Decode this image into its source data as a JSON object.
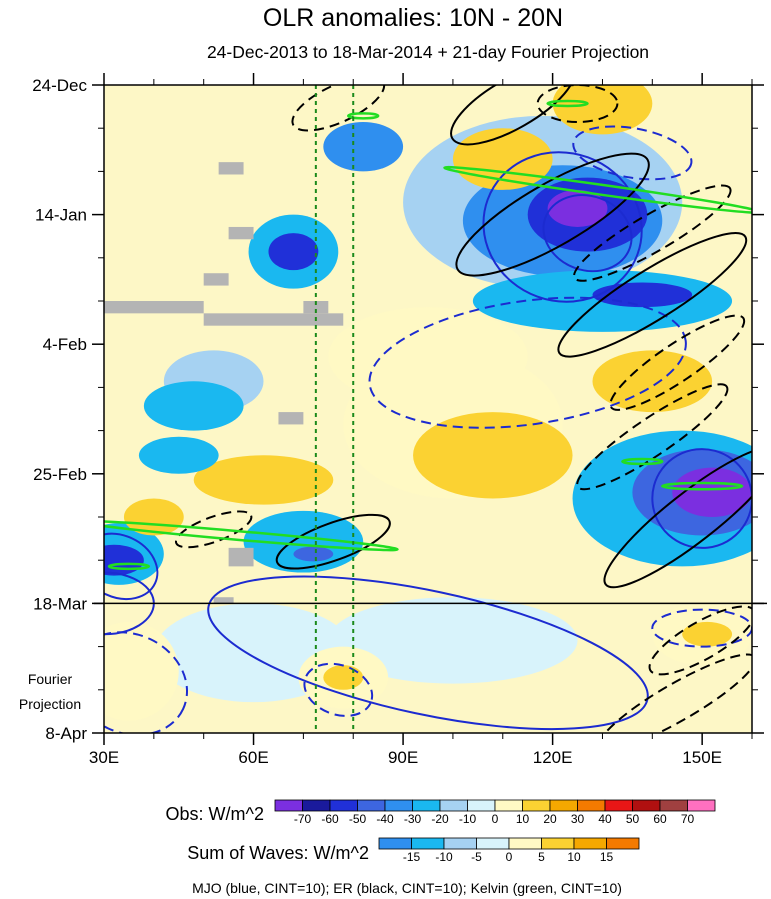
{
  "chart_data": {
    "type": "heatmap",
    "title": "OLR anomalies: 10N - 20N",
    "subtitle": "24-Dec-2013 to 18-Mar-2014 + 21-day Fourier Projection",
    "x_range": [
      30,
      160
    ],
    "y_range_days": [
      0,
      105
    ],
    "x_ticks": [
      {
        "value": 30,
        "label": "30E"
      },
      {
        "value": 60,
        "label": "60E"
      },
      {
        "value": 90,
        "label": "90E"
      },
      {
        "value": 120,
        "label": "120E"
      },
      {
        "value": 150,
        "label": "150E"
      }
    ],
    "y_ticks": [
      {
        "day": 0,
        "label": "24-Dec"
      },
      {
        "day": 21,
        "label": "14-Jan"
      },
      {
        "day": 42,
        "label": "4-Feb"
      },
      {
        "day": 63,
        "label": "25-Feb"
      },
      {
        "day": 84,
        "label": "18-Mar"
      },
      {
        "day": 105,
        "label": "8-Apr"
      }
    ],
    "projection_label": [
      "Fourier",
      "Projection"
    ],
    "projection_start_day": 84,
    "reference_lines_lon": [
      72.5,
      80
    ],
    "obs_legend": {
      "label": "Obs: W/m^2",
      "ticks": [
        "-70",
        "-60",
        "-50",
        "-40",
        "-30",
        "-20",
        "-10",
        "0",
        "10",
        "20",
        "30",
        "40",
        "50",
        "60",
        "70"
      ],
      "colors": [
        "#7b2fe0",
        "#1a1a9c",
        "#2030d8",
        "#3d66e0",
        "#2f8fef",
        "#1ab8f0",
        "#a6d2f2",
        "#d8f3fb",
        "#fff9c4",
        "#fbd232",
        "#f5a800",
        "#f47a00",
        "#e81616",
        "#b01010",
        "#a04040",
        "#ff70c0"
      ]
    },
    "waves_legend": {
      "label": "Sum of Waves: W/m^2",
      "ticks": [
        "-15",
        "-10",
        "-5",
        "0",
        "5",
        "10",
        "15"
      ],
      "colors": [
        "#2f8fef",
        "#1ab8f0",
        "#a6d2f2",
        "#d8f3fb",
        "#fff9c4",
        "#fbd232",
        "#f5a800",
        "#f47a00"
      ]
    },
    "footer": "MJO (blue, CINT=10); ER (black, CINT=10); Kelvin (green, CINT=10)",
    "series": [
      {
        "name": "MJO",
        "color": "blue"
      },
      {
        "name": "ER",
        "color": "black"
      },
      {
        "name": "Kelvin",
        "color": "green"
      }
    ],
    "features": [
      {
        "kind": "fill",
        "lon": 125,
        "day": 20,
        "rlon": 6,
        "rday": 3,
        "level": -70
      },
      {
        "kind": "fill",
        "lon": 127,
        "day": 21,
        "rlon": 12,
        "rday": 6,
        "level": -50
      },
      {
        "kind": "fill",
        "lon": 122,
        "day": 22,
        "rlon": 20,
        "rday": 9,
        "level": -30
      },
      {
        "kind": "fill",
        "lon": 118,
        "day": 19,
        "rlon": 28,
        "rday": 14,
        "level": -10
      },
      {
        "kind": "fill",
        "lon": 138,
        "day": 34,
        "rlon": 10,
        "rday": 2,
        "level": -50
      },
      {
        "kind": "fill",
        "lon": 130,
        "day": 35,
        "rlon": 26,
        "rday": 5,
        "level": -20
      },
      {
        "kind": "fill",
        "lon": 152,
        "day": 66,
        "rlon": 8,
        "rday": 4,
        "level": -70
      },
      {
        "kind": "fill",
        "lon": 150,
        "day": 66,
        "rlon": 14,
        "rday": 7,
        "level": -40
      },
      {
        "kind": "fill",
        "lon": 146,
        "day": 67,
        "rlon": 22,
        "rday": 11,
        "level": -20
      },
      {
        "kind": "fill",
        "lon": 72,
        "day": 76,
        "rlon": 4,
        "rday": 1.2,
        "level": -40
      },
      {
        "kind": "fill",
        "lon": 70,
        "day": 74,
        "rlon": 12,
        "rday": 5,
        "level": -20
      },
      {
        "kind": "fill",
        "lon": 32,
        "day": 77,
        "rlon": 6,
        "rday": 2.5,
        "level": -50
      },
      {
        "kind": "fill",
        "lon": 33,
        "day": 76,
        "rlon": 9,
        "rday": 5,
        "level": -20
      },
      {
        "kind": "fill",
        "lon": 68,
        "day": 27,
        "rlon": 5,
        "rday": 3,
        "level": -50
      },
      {
        "kind": "fill",
        "lon": 68,
        "day": 27,
        "rlon": 9,
        "rday": 6,
        "level": -20
      },
      {
        "kind": "fill",
        "lon": 82,
        "day": 10,
        "rlon": 8,
        "rday": 4,
        "level": -30
      },
      {
        "kind": "fill",
        "lon": 48,
        "day": 52,
        "rlon": 10,
        "rday": 4,
        "level": -20
      },
      {
        "kind": "fill",
        "lon": 45,
        "day": 60,
        "rlon": 8,
        "rday": 3,
        "level": -20
      },
      {
        "kind": "fill",
        "lon": 52,
        "day": 48,
        "rlon": 10,
        "rday": 5,
        "level": -10
      },
      {
        "kind": "fill",
        "lon": 95,
        "day": 44,
        "rlon": 20,
        "rday": 8,
        "level": 10
      },
      {
        "kind": "fill",
        "lon": 108,
        "day": 60,
        "rlon": 16,
        "rday": 7,
        "level": 20
      },
      {
        "kind": "fill",
        "lon": 100,
        "day": 55,
        "rlon": 22,
        "rday": 12,
        "level": 10
      },
      {
        "kind": "fill",
        "lon": 140,
        "day": 48,
        "rlon": 12,
        "rday": 5,
        "level": 20
      },
      {
        "kind": "fill",
        "lon": 62,
        "day": 64,
        "rlon": 14,
        "rday": 4,
        "level": 20
      },
      {
        "kind": "fill",
        "lon": 110,
        "day": 12,
        "rlon": 10,
        "rday": 5,
        "level": 20
      },
      {
        "kind": "fill",
        "lon": 130,
        "day": 3,
        "rlon": 10,
        "rday": 5,
        "level": 20
      },
      {
        "kind": "fill",
        "lon": 40,
        "day": 70,
        "rlon": 6,
        "rday": 3,
        "level": 20
      },
      {
        "kind": "fill",
        "lon": 35,
        "day": 95,
        "rlon": 10,
        "rday": 8,
        "level": 10
      },
      {
        "kind": "fill",
        "lon": 78,
        "day": 96,
        "rlon": 9,
        "rday": 5,
        "level": 10
      },
      {
        "kind": "fill",
        "lon": 78,
        "day": 96,
        "rlon": 4,
        "rday": 2,
        "level": 20
      },
      {
        "kind": "fill",
        "lon": 150,
        "day": 89,
        "rlon": 10,
        "rday": 5,
        "level": 10
      },
      {
        "kind": "fill",
        "lon": 151,
        "day": 89,
        "rlon": 5,
        "rday": 2,
        "level": 20
      },
      {
        "kind": "fill",
        "lon": 100,
        "day": 90,
        "rlon": 25,
        "rday": 7,
        "level": -5
      },
      {
        "kind": "fill",
        "lon": 60,
        "day": 92,
        "rlon": 20,
        "rday": 8,
        "level": -5
      }
    ],
    "gray_cells": [
      {
        "lon0": 53,
        "lon1": 58,
        "day0": 12.5,
        "day1": 14.5
      },
      {
        "lon0": 55,
        "lon1": 60,
        "day0": 23,
        "day1": 25
      },
      {
        "lon0": 50,
        "lon1": 55,
        "day0": 30.5,
        "day1": 32.5
      },
      {
        "lon0": 30,
        "lon1": 50,
        "day0": 35,
        "day1": 37
      },
      {
        "lon0": 50,
        "lon1": 78,
        "day0": 37,
        "day1": 39
      },
      {
        "lon0": 70,
        "lon1": 75,
        "day0": 35,
        "day1": 37
      },
      {
        "lon0": 65,
        "lon1": 70,
        "day0": 53,
        "day1": 55
      },
      {
        "lon0": 55,
        "lon1": 60,
        "day0": 75,
        "day1": 78
      },
      {
        "lon0": 52,
        "lon1": 56,
        "day0": 83,
        "day1": 84
      }
    ],
    "contours": [
      {
        "wave": "MJO",
        "sign": "neg",
        "lon": 122,
        "day": 23,
        "rlon": 16,
        "rday": 12,
        "rot": 20
      },
      {
        "wave": "MJO",
        "sign": "neg",
        "lon": 127,
        "day": 24,
        "rlon": 9,
        "rday": 6,
        "rot": 20
      },
      {
        "wave": "MJO",
        "sign": "pos",
        "lon": 136,
        "day": 11,
        "rlon": 12,
        "rday": 4,
        "rot": 10
      },
      {
        "wave": "MJO",
        "sign": "pos",
        "lon": 115,
        "day": 45,
        "rlon": 32,
        "rday": 10,
        "rot": -8
      },
      {
        "wave": "MJO",
        "sign": "neg",
        "lon": 150,
        "day": 67,
        "rlon": 10,
        "rday": 8,
        "rot": 15
      },
      {
        "wave": "MJO",
        "sign": "neg",
        "lon": 95,
        "day": 92,
        "rlon": 45,
        "rday": 10,
        "rot": 12
      },
      {
        "wave": "MJO",
        "sign": "neg",
        "lon": 33,
        "day": 78,
        "rlon": 8,
        "rday": 5,
        "rot": 25
      },
      {
        "wave": "MJO",
        "sign": "neg",
        "lon": 30,
        "day": 84,
        "rlon": 10,
        "rday": 5,
        "rot": 0
      },
      {
        "wave": "MJO",
        "sign": "pos",
        "lon": 35,
        "day": 97,
        "rlon": 12,
        "rday": 8,
        "rot": 25
      },
      {
        "wave": "MJO",
        "sign": "pos",
        "lon": 77,
        "day": 98,
        "rlon": 7,
        "rday": 4,
        "rot": 20
      },
      {
        "wave": "MJO",
        "sign": "pos",
        "lon": 150,
        "day": 88,
        "rlon": 10,
        "rday": 3,
        "rot": 0
      },
      {
        "wave": "ER",
        "sign": "neg",
        "lon": 112,
        "day": 3,
        "rlon": 14,
        "rday": 4,
        "rot": -30
      },
      {
        "wave": "ER",
        "sign": "pos",
        "lon": 77,
        "day": 3,
        "rlon": 10,
        "rday": 3,
        "rot": -25
      },
      {
        "wave": "ER",
        "sign": "pos",
        "lon": 125,
        "day": 3,
        "rlon": 8,
        "rday": 3,
        "rot": 0
      },
      {
        "wave": "ER",
        "sign": "neg",
        "lon": 120,
        "day": 21,
        "rlon": 22,
        "rday": 5,
        "rot": -30
      },
      {
        "wave": "ER",
        "sign": "pos",
        "lon": 140,
        "day": 24,
        "rlon": 18,
        "rday": 3,
        "rot": -30
      },
      {
        "wave": "ER",
        "sign": "neg",
        "lon": 140,
        "day": 34,
        "rlon": 22,
        "rday": 4,
        "rot": -32
      },
      {
        "wave": "ER",
        "sign": "pos",
        "lon": 145,
        "day": 45,
        "rlon": 16,
        "rday": 3,
        "rot": -34
      },
      {
        "wave": "ER",
        "sign": "pos",
        "lon": 140,
        "day": 57,
        "rlon": 18,
        "rday": 3,
        "rot": -34
      },
      {
        "wave": "ER",
        "sign": "neg",
        "lon": 148,
        "day": 70,
        "rlon": 22,
        "rday": 4,
        "rot": -38
      },
      {
        "wave": "ER",
        "sign": "neg",
        "lon": 76,
        "day": 74,
        "rlon": 12,
        "rday": 3,
        "rot": -20
      },
      {
        "wave": "ER",
        "sign": "pos",
        "lon": 52,
        "day": 72,
        "rlon": 8,
        "rday": 2,
        "rot": -20
      },
      {
        "wave": "ER",
        "sign": "pos",
        "lon": 145,
        "day": 100,
        "rlon": 18,
        "rday": 3,
        "rot": -30
      },
      {
        "wave": "ER",
        "sign": "pos",
        "lon": 150,
        "day": 90,
        "rlon": 12,
        "rday": 3,
        "rot": -30
      },
      {
        "wave": "Kelvin",
        "sign": "neg",
        "lon": 130,
        "day": 17,
        "rlon": 32,
        "rday": 0.8,
        "rot": 8
      },
      {
        "wave": "Kelvin",
        "sign": "neg",
        "lon": 57,
        "day": 73,
        "rlon": 32,
        "rday": 0.7,
        "rot": 5
      },
      {
        "wave": "Kelvin",
        "sign": "neg",
        "lon": 150,
        "day": 65,
        "rlon": 8,
        "rday": 0.5,
        "rot": 0
      },
      {
        "wave": "Kelvin",
        "sign": "neg",
        "lon": 123,
        "day": 3,
        "rlon": 4,
        "rday": 0.4,
        "rot": 0
      },
      {
        "wave": "Kelvin",
        "sign": "neg",
        "lon": 82,
        "day": 5,
        "rlon": 3,
        "rday": 0.4,
        "rot": 0
      },
      {
        "wave": "Kelvin",
        "sign": "neg",
        "lon": 35,
        "day": 78,
        "rlon": 4,
        "rday": 0.4,
        "rot": 0
      },
      {
        "wave": "Kelvin",
        "sign": "neg",
        "lon": 138,
        "day": 61,
        "rlon": 4,
        "rday": 0.4,
        "rot": 0
      }
    ]
  }
}
